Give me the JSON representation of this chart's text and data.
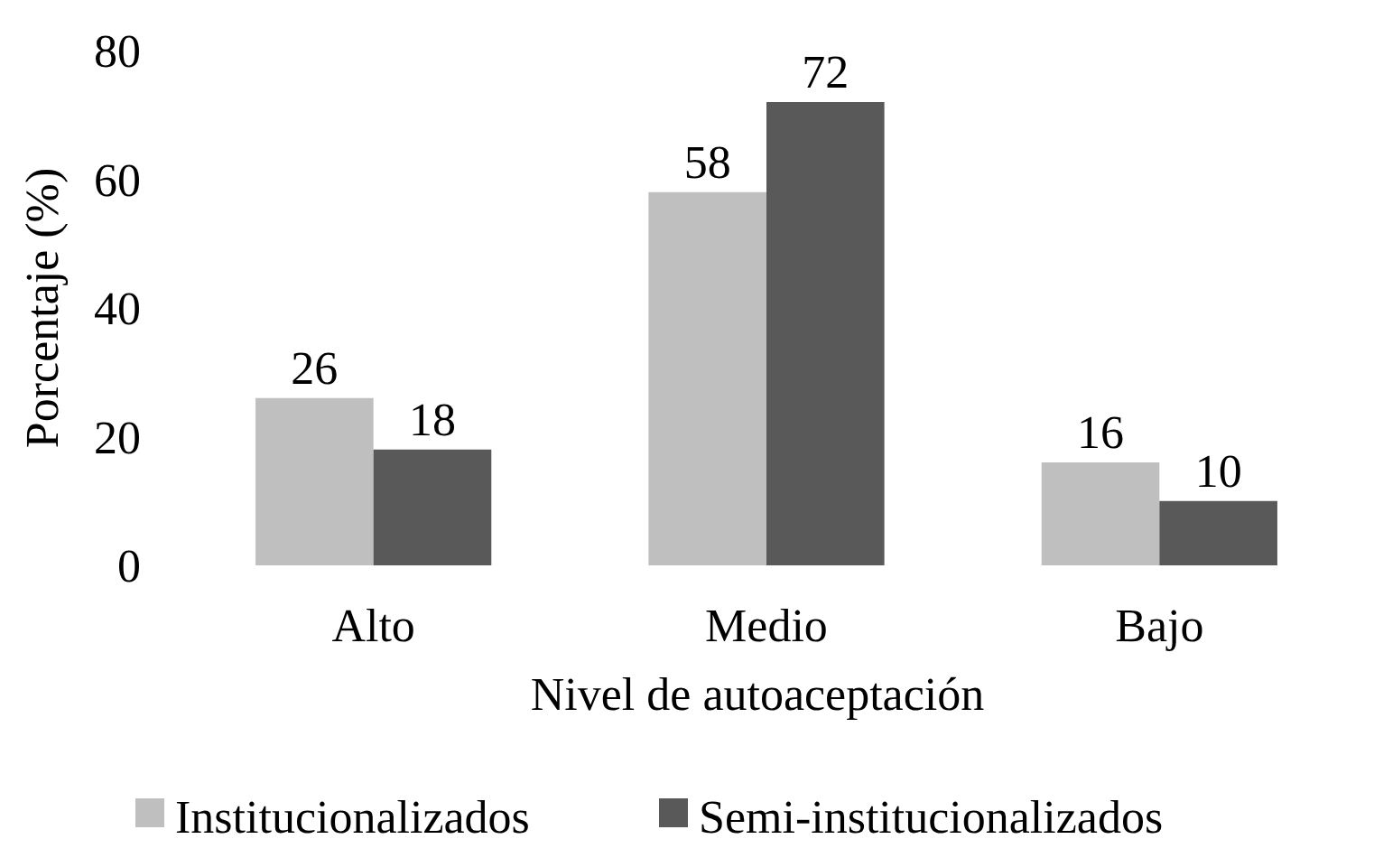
{
  "chart_data": {
    "type": "bar",
    "xlabel": "Nivel de autoaceptación",
    "ylabel": "Porcentaje (%)",
    "categories": [
      "Alto",
      "Medio",
      "Bajo"
    ],
    "series": [
      {
        "name": "Institucionalizados",
        "color": "#bfbfbf",
        "values": [
          26,
          58,
          16
        ]
      },
      {
        "name": "Semi-institucionalizados",
        "color": "#595959",
        "values": [
          18,
          72,
          10
        ]
      }
    ],
    "ylim": [
      0,
      80
    ],
    "yticks": [
      0,
      20,
      40,
      60,
      80
    ],
    "data_labels": true,
    "grid": false,
    "legend": "bottom"
  }
}
